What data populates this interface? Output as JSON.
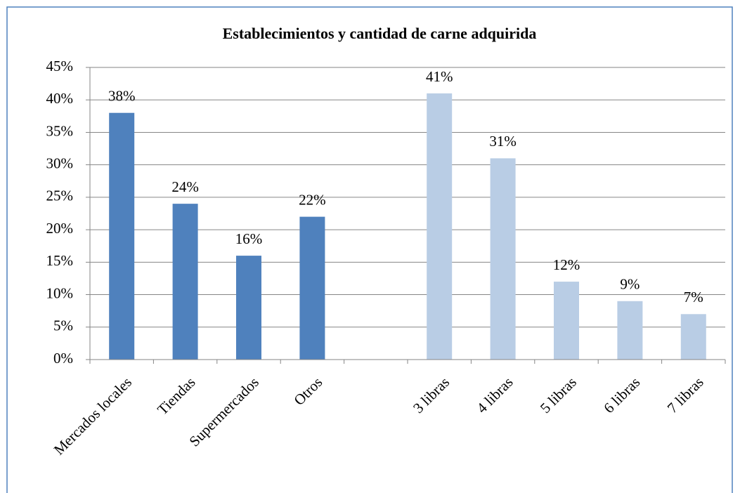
{
  "chart_data": {
    "type": "bar",
    "title": "Establecimientos y cantidad  de carne adquirida",
    "categories": [
      "Mercados locales",
      "Tiendas",
      "Supermercados",
      "Otros",
      null,
      "3 libras",
      "4 libras",
      "5 libras",
      "6 libras",
      "7 libras"
    ],
    "series": [
      {
        "color": "#4f81bd",
        "values": [
          38,
          24,
          16,
          22,
          null,
          null,
          null,
          null,
          null,
          null
        ],
        "value_labels": [
          "38%",
          "24%",
          "16%",
          "22%",
          null,
          null,
          null,
          null,
          null,
          null
        ]
      },
      {
        "color": "#b9cde5",
        "values": [
          null,
          null,
          null,
          null,
          null,
          41,
          31,
          12,
          9,
          7
        ],
        "value_labels": [
          null,
          null,
          null,
          null,
          null,
          "41%",
          "31%",
          "12%",
          "9%",
          "7%"
        ]
      }
    ],
    "ylim": [
      0,
      45
    ],
    "yticks": [
      {
        "value": 0,
        "label": "0%"
      },
      {
        "value": 5,
        "label": "5%"
      },
      {
        "value": 10,
        "label": "10%"
      },
      {
        "value": 15,
        "label": "15%"
      },
      {
        "value": 20,
        "label": "20%"
      },
      {
        "value": 25,
        "label": "25%"
      },
      {
        "value": 30,
        "label": "30%"
      },
      {
        "value": 35,
        "label": "35%"
      },
      {
        "value": 40,
        "label": "40%"
      },
      {
        "value": 45,
        "label": "45%"
      }
    ],
    "grid": true
  }
}
